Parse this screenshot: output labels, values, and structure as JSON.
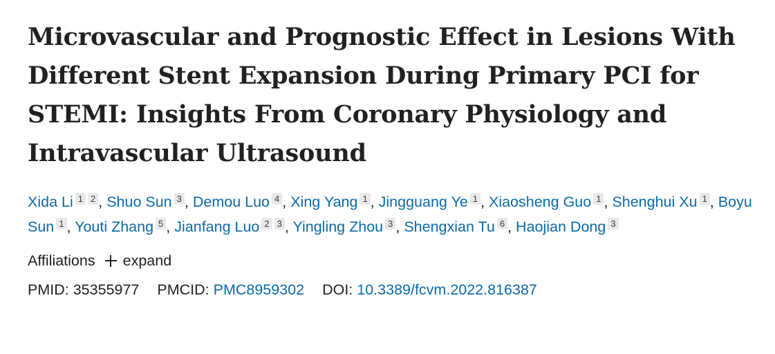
{
  "title": "Microvascular and Prognostic Effect in Lesions With Different Stent Expansion During Primary PCI for STEMI: Insights From Coronary Physiology and Intravascular Ultrasound",
  "authors": [
    {
      "name": "Xida Li",
      "affiliations": [
        "1",
        "2"
      ]
    },
    {
      "name": "Shuo Sun",
      "affiliations": [
        "3"
      ]
    },
    {
      "name": "Demou Luo",
      "affiliations": [
        "4"
      ]
    },
    {
      "name": "Xing Yang",
      "affiliations": [
        "1"
      ]
    },
    {
      "name": "Jingguang Ye",
      "affiliations": [
        "1"
      ]
    },
    {
      "name": "Xiaosheng Guo",
      "affiliations": [
        "1"
      ]
    },
    {
      "name": "Shenghui Xu",
      "affiliations": [
        "1"
      ]
    },
    {
      "name": "Boyu Sun",
      "affiliations": [
        "1"
      ]
    },
    {
      "name": "Youti Zhang",
      "affiliations": [
        "5"
      ]
    },
    {
      "name": "Jianfang Luo",
      "affiliations": [
        "2",
        "3"
      ]
    },
    {
      "name": "Yingling Zhou",
      "affiliations": [
        "3"
      ]
    },
    {
      "name": "Shengxian Tu",
      "affiliations": [
        "6"
      ]
    },
    {
      "name": "Haojian Dong",
      "affiliations": [
        "3"
      ]
    }
  ],
  "affiliations": {
    "label": "Affiliations",
    "expand_label": "expand",
    "expand_icon": "plus-icon"
  },
  "identifiers": {
    "pmid_label": "PMID:",
    "pmid_value": "35355977",
    "pmcid_label": "PMCID:",
    "pmcid_value": "PMC8959302",
    "doi_label": "DOI:",
    "doi_value": "10.3389/fcvm.2022.816387"
  },
  "colors": {
    "link": "#0b6aa8",
    "text": "#212121",
    "badge_bg": "#e9e9e9"
  }
}
